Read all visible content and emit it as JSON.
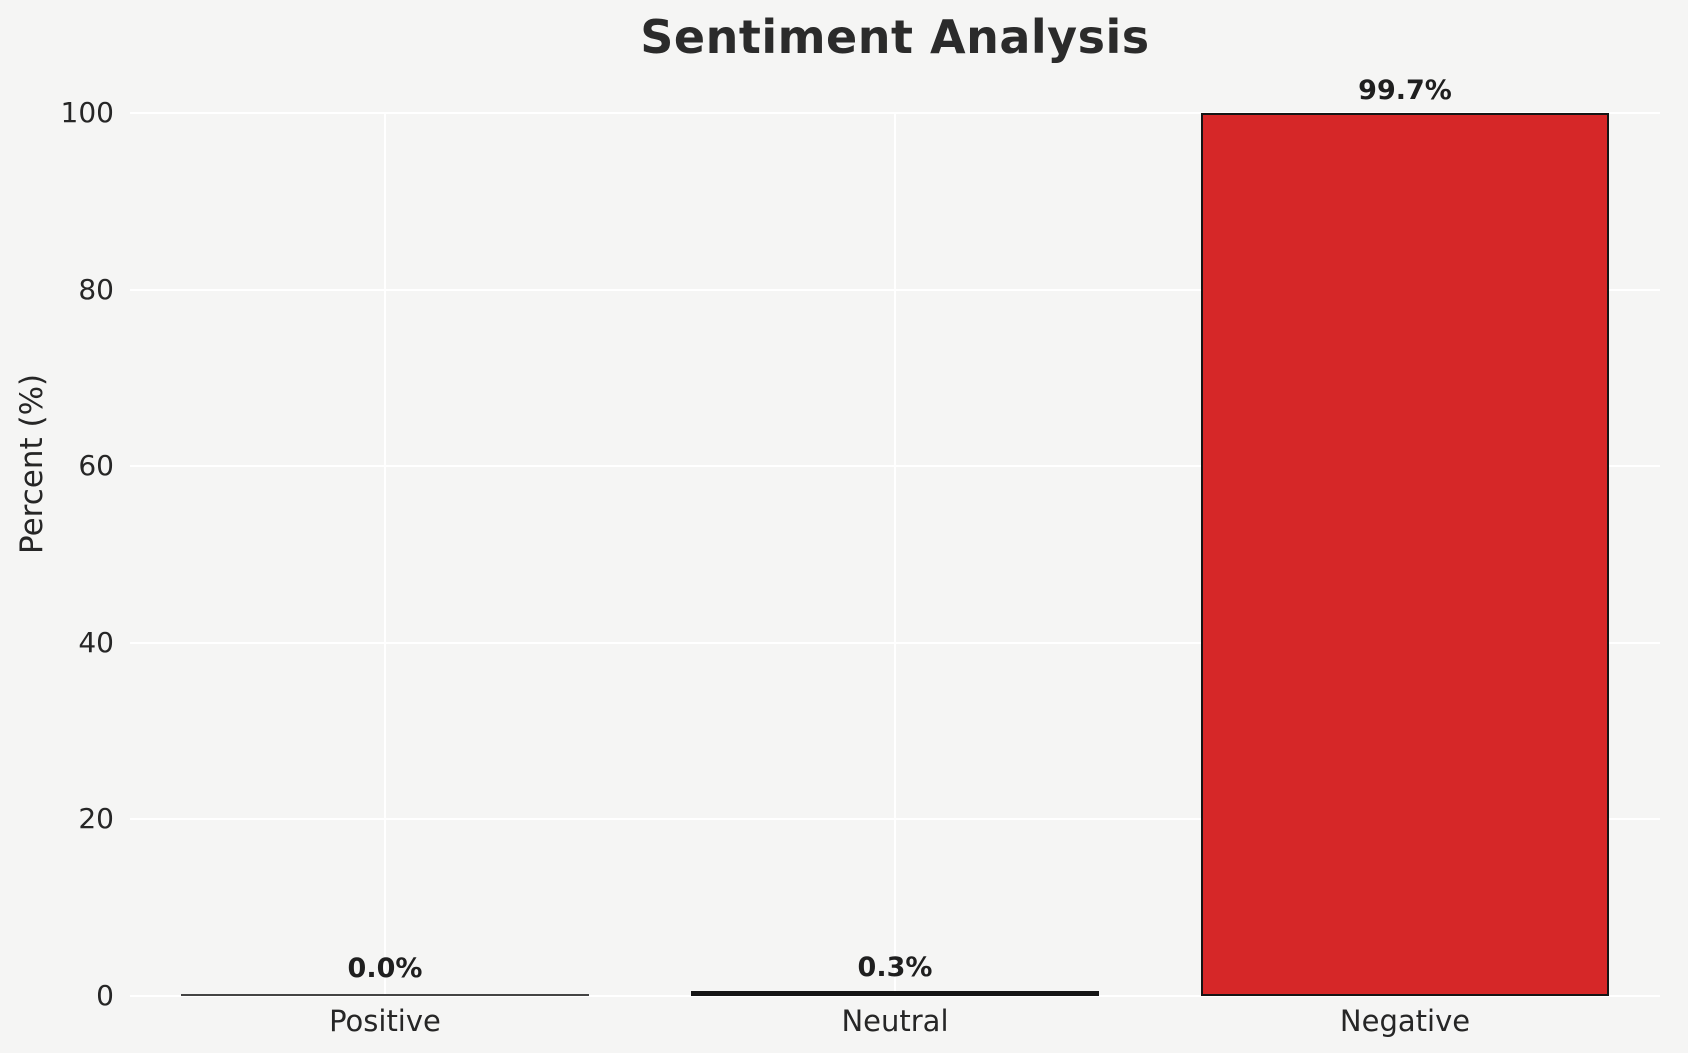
{
  "page": {
    "background_color": "#f5f5f4",
    "text_color": "#262626"
  },
  "chart_data": {
    "type": "bar",
    "title": "Sentiment Analysis",
    "categories": [
      "Positive",
      "Neutral",
      "Negative"
    ],
    "values": [
      0.0,
      0.3,
      99.7
    ],
    "value_labels": [
      "0.0%",
      "0.3%",
      "99.7%"
    ],
    "xlabel": "",
    "ylabel": "Percent (%)",
    "ylim": [
      0,
      100
    ],
    "yticks": [
      0,
      20,
      40,
      60,
      80,
      100
    ],
    "grid": true,
    "grid_color": "#ffffff",
    "legend": "none",
    "bar_fill_color": "#d62728",
    "bar_edge_color": "#151515",
    "zero_bar_line_color": "#444444",
    "bar_width_fraction": 0.8
  }
}
